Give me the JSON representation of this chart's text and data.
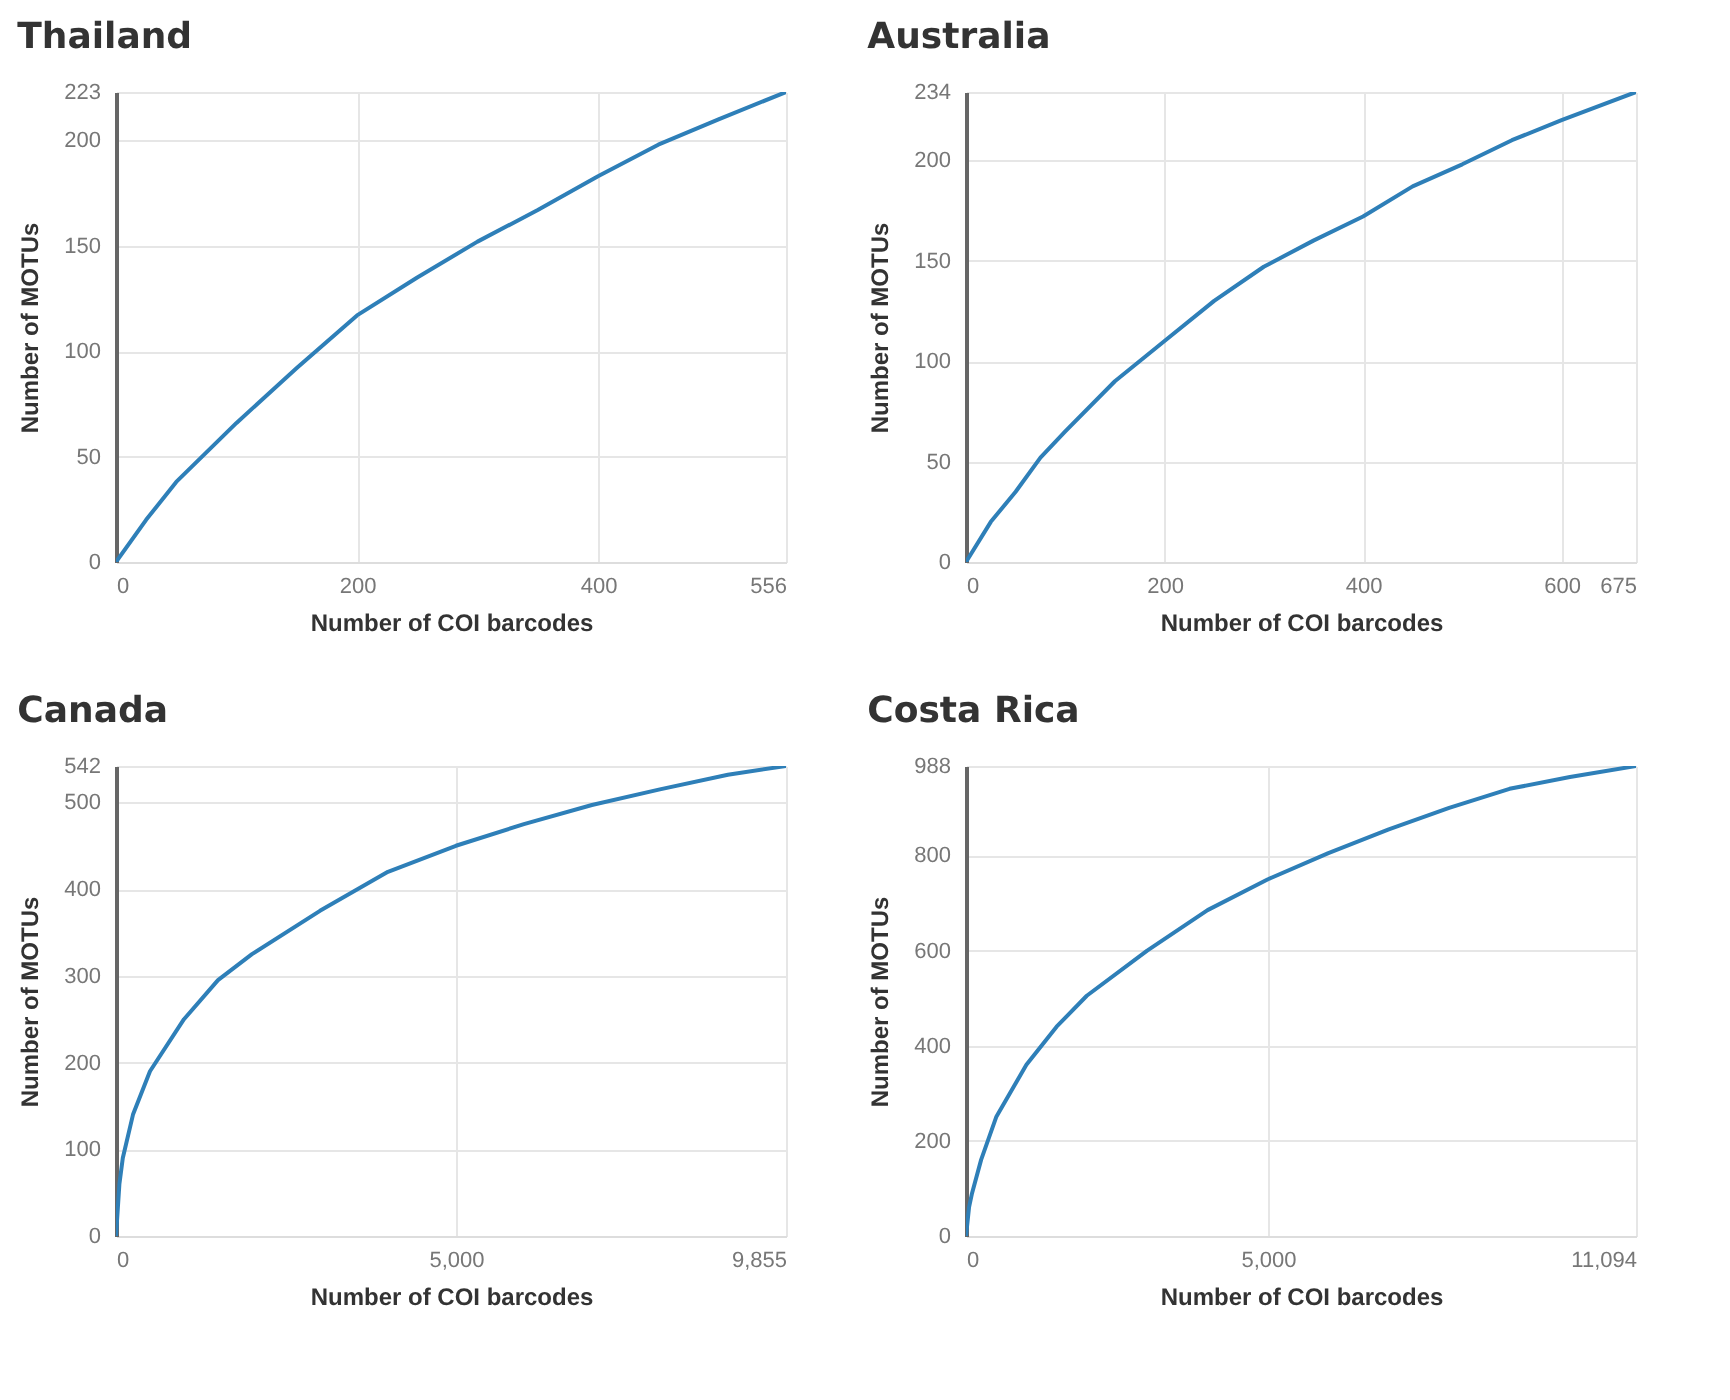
{
  "chart_data": [
    {
      "type": "line",
      "title": "Thailand",
      "xlabel": "Number of COI barcodes",
      "ylabel": "Number of MOTUs",
      "grid": true,
      "xlim": [
        0,
        556
      ],
      "ylim": [
        0,
        223
      ],
      "xticks": [
        0,
        200,
        400,
        556
      ],
      "yticks": [
        0,
        50,
        100,
        150,
        200,
        223
      ],
      "series": [
        {
          "color": "#2e7fb8",
          "x": [
            0,
            25,
            50,
            75,
            100,
            150,
            200,
            250,
            300,
            350,
            400,
            450,
            500,
            556
          ],
          "values": [
            0,
            20,
            38,
            52,
            66,
            92,
            117,
            135,
            152,
            167,
            183,
            198,
            210,
            223
          ]
        }
      ]
    },
    {
      "type": "line",
      "title": "Australia",
      "xlabel": "Number of COI barcodes",
      "ylabel": "Number of MOTUs",
      "grid": true,
      "xlim": [
        0,
        675
      ],
      "ylim": [
        0,
        234
      ],
      "xticks": [
        0,
        200,
        400,
        600,
        675
      ],
      "yticks": [
        0,
        50,
        100,
        150,
        200,
        234
      ],
      "series": [
        {
          "color": "#2e7fb8",
          "x": [
            0,
            25,
            50,
            75,
            100,
            150,
            200,
            250,
            300,
            350,
            400,
            450,
            500,
            550,
            600,
            675
          ],
          "values": [
            0,
            20,
            35,
            52,
            65,
            90,
            110,
            130,
            147,
            160,
            172,
            187,
            198,
            210,
            220,
            234
          ]
        }
      ]
    },
    {
      "type": "line",
      "title": "Canada",
      "xlabel": "Number of COI barcodes",
      "ylabel": "Number of MOTUs",
      "grid": true,
      "xlim": [
        0,
        9855
      ],
      "ylim": [
        0,
        542
      ],
      "xticks": [
        0,
        {
          "value": 5000,
          "label": "5,000"
        },
        {
          "value": 9855,
          "label": "9,855"
        }
      ],
      "yticks": [
        0,
        100,
        200,
        300,
        400,
        500,
        542
      ],
      "series": [
        {
          "color": "#2e7fb8",
          "x": [
            0,
            50,
            100,
            250,
            500,
            1000,
            1500,
            2000,
            3000,
            4000,
            5000,
            6000,
            7000,
            8000,
            9000,
            9855
          ],
          "values": [
            0,
            60,
            90,
            140,
            190,
            250,
            295,
            325,
            375,
            420,
            450,
            475,
            497,
            515,
            532,
            542
          ]
        }
      ]
    },
    {
      "type": "line",
      "title": "Costa Rica",
      "xlabel": "Number of COI barcodes",
      "ylabel": "Number of MOTUs",
      "grid": true,
      "xlim": [
        0,
        11094
      ],
      "ylim": [
        0,
        988
      ],
      "xticks": [
        0,
        {
          "value": 5000,
          "label": "5,000"
        },
        {
          "value": 11094,
          "label": "11,094"
        }
      ],
      "yticks": [
        0,
        200,
        400,
        600,
        800,
        988
      ],
      "series": [
        {
          "color": "#2e7fb8",
          "x": [
            0,
            50,
            100,
            250,
            500,
            1000,
            1500,
            2000,
            3000,
            4000,
            5000,
            6000,
            7000,
            8000,
            9000,
            10000,
            11094
          ],
          "values": [
            0,
            60,
            90,
            160,
            250,
            360,
            440,
            505,
            600,
            685,
            750,
            805,
            855,
            900,
            940,
            965,
            988
          ]
        }
      ]
    }
  ]
}
